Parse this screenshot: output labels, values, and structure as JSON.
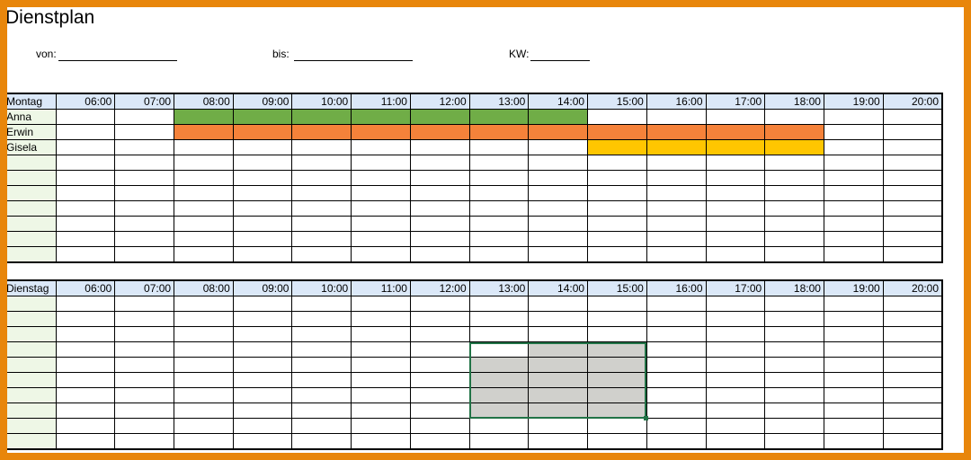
{
  "title": "Dienstplan",
  "meta": {
    "von_label": "von:",
    "bis_label": "bis:",
    "kw_label": "KW:"
  },
  "hours": [
    "06:00",
    "07:00",
    "08:00",
    "09:00",
    "10:00",
    "11:00",
    "12:00",
    "13:00",
    "14:00",
    "15:00",
    "16:00",
    "17:00",
    "18:00",
    "19:00",
    "20:00"
  ],
  "colors": {
    "green": "#70ad47",
    "orange": "#f5823a",
    "yellow": "#ffc600",
    "header": "#dbe8f8",
    "name_column": "#eef7e6",
    "selection": "#217346"
  },
  "days": [
    {
      "label": "Montag",
      "rows": [
        {
          "name": "Anna",
          "shift": {
            "color": "green",
            "from": "08:00",
            "to": "14:00"
          }
        },
        {
          "name": "Erwin",
          "shift": {
            "color": "orange",
            "from": "08:00",
            "to": "18:00"
          }
        },
        {
          "name": "Gisela",
          "shift": {
            "color": "yellow",
            "from": "15:00",
            "to": "18:00"
          }
        },
        {
          "name": ""
        },
        {
          "name": ""
        },
        {
          "name": ""
        },
        {
          "name": ""
        },
        {
          "name": ""
        },
        {
          "name": ""
        },
        {
          "name": ""
        }
      ]
    },
    {
      "label": "Dienstag",
      "rows": [
        {
          "name": ""
        },
        {
          "name": ""
        },
        {
          "name": ""
        },
        {
          "name": ""
        },
        {
          "name": ""
        },
        {
          "name": ""
        },
        {
          "name": ""
        },
        {
          "name": ""
        },
        {
          "name": ""
        },
        {
          "name": ""
        }
      ]
    }
  ]
}
